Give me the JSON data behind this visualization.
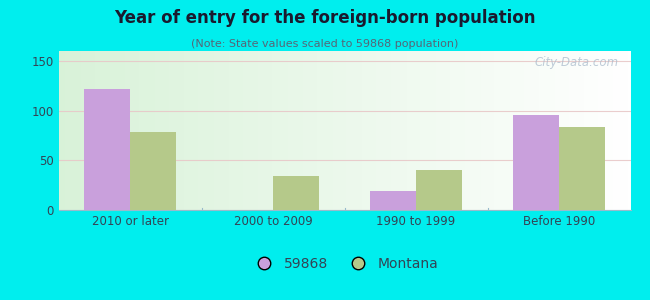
{
  "title": "Year of entry for the foreign-born population",
  "subtitle": "(Note: State values scaled to 59868 population)",
  "categories": [
    "2010 or later",
    "2000 to 2009",
    "1990 to 1999",
    "Before 1990"
  ],
  "values_59868": [
    122,
    0,
    19,
    96
  ],
  "values_montana": [
    78,
    34,
    40,
    84
  ],
  "bar_color_59868": "#c9a0dc",
  "bar_color_montana": "#b5c98a",
  "background_outer": "#00eeee",
  "ylim": [
    0,
    160
  ],
  "yticks": [
    0,
    50,
    100,
    150
  ],
  "legend_label_1": "59868",
  "legend_label_2": "Montana",
  "bar_width": 0.32,
  "watermark": "City-Data.com",
  "title_color": "#1a1a2e",
  "subtitle_color": "#556677",
  "tick_color": "#334455"
}
